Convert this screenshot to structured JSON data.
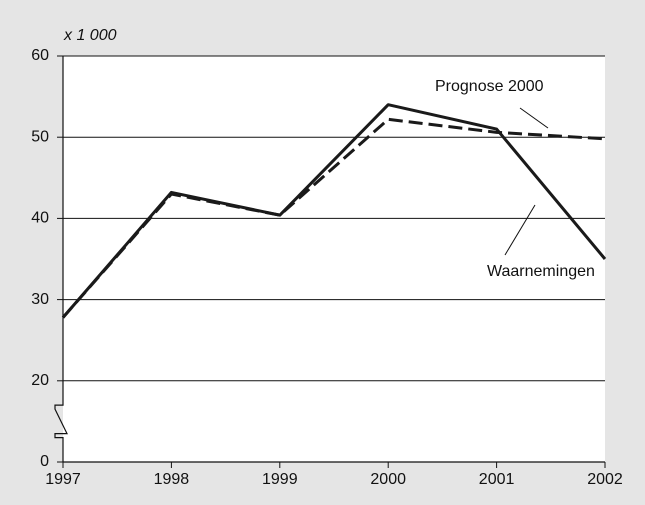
{
  "chart_data": {
    "type": "line",
    "y_unit_label": "x 1 000",
    "x": [
      1997,
      1998,
      1999,
      2000,
      2001,
      2002
    ],
    "xlim": [
      1997,
      2002
    ],
    "xticks": [
      1997,
      1998,
      1999,
      2000,
      2001,
      2002
    ],
    "ylim": [
      0,
      60
    ],
    "yticks": [
      0,
      20,
      30,
      40,
      50,
      60
    ],
    "axis_break": true,
    "grid": true,
    "series": [
      {
        "name": "Waarnemingen",
        "color": "#1a1a1a",
        "dash": false,
        "values": [
          27.8,
          43.2,
          40.4,
          54,
          51,
          35
        ]
      },
      {
        "name": "Prognose 2000",
        "color": "#1a1a1a",
        "dash": true,
        "values": [
          27.8,
          43,
          40.4,
          52.2,
          50.6,
          49.8
        ]
      }
    ]
  }
}
